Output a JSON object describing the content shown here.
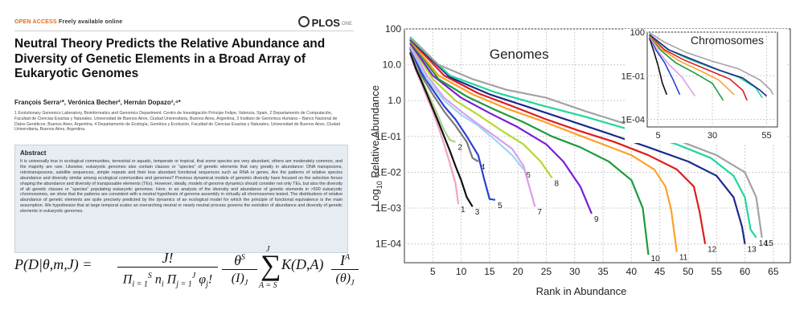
{
  "paper": {
    "journal_badge_open": "OPEN",
    "journal_badge_access": " ACCESS ",
    "journal_badge_free": "Freely available online",
    "journal_name": "PLOS",
    "journal_sub": "ONE",
    "title": "Neutral Theory Predicts the Relative Abundance and Diversity of Genetic Elements in a Broad Array of Eukaryotic Genomes",
    "authors": "François Serra¹*, Verónica Becher², Hernán Dopazo³,⁴*",
    "affiliations": "1 Evolutionary Genomics Laboratory, Bioinformatics and Genomics Department, Centro de Investigación Príncipe Felipe, Valencia, Spain, 2 Departamento de Computación, Facultad de Ciencias Exactas y Naturales, Universidad de Buenos Aires, Ciudad Universitaria, Buenos Aires, Argentina, 3 Instituto de Genómica Humana – Banco Nacional de Datos Genéticos, Buenos Aires, Argentina, 4 Departamento de Ecología, Genética y Evolución, Facultad de Ciencias Exactas y Naturales, Universidad de Buenos Aires, Ciudad Universitaria, Buenos Aires, Argentina",
    "abstract_heading": "Abstract",
    "abstract": "It is universally true in ecological communities, terrestrial or aquatic, temperate or tropical, that some species are very abundant, others are moderately common, and the majority are rare. Likewise, eukaryotic genomes also contain classes or “species” of genetic elements that vary greatly in abundance: DNA transposons, retrotransposons, satellite sequences, simple repeats and their less abundant functional sequences such as RNA or genes. Are the patterns of relative species abundance and diversity similar among ecological communities and genomes? Previous dynamical models of genomic diversity have focused on the selective forces shaping the abundance and diversity of transposable elements (TEs). However, ideally, models of genome dynamics should consider not only TEs, but also the diversity of all genetic classes or “species” populating eukaryotic genomes. Here, in an analysis of the diversity and abundance of genetic elements in >500 eukaryotic chromosomes, we show that the patterns are consistent with a neutral hypothesis of genome assembly in virtually all chromosomes tested. The distributions of relative abundance of genetic elements are quite precisely predicted by the dynamics of an ecological model for which the principle of functional equivalence is the main assumption. We hypothesize that at large temporal scales an overarching neutral or nearly neutral process governs the evolution of abundance and diversity of genetic elements in eukaryotic genomes."
  },
  "formula": {
    "lhs": "P(D|θ,m,J) =",
    "frac1_num": "J!",
    "frac2_num": "θ",
    "frac2_num_sup": "S",
    "frac2_den": "(I)",
    "frac2_den_sub": "J",
    "sum_top": "J",
    "sum_bottom": "A = S",
    "term": "K(D,A)",
    "frac3_num": "I",
    "frac3_num_sup": "A",
    "frac3_den": "(θ)",
    "frac3_den_sub": "J"
  },
  "chart_data": {
    "type": "line",
    "xlabel": "Rank in Abundance",
    "ylabel_prefix": "Log",
    "ylabel_sub": "10",
    "ylabel_rest": " Relative Abundance",
    "log_y": true,
    "ylim": [
      3e-05,
      100
    ],
    "xlim": [
      0,
      68
    ],
    "xticks": [
      5,
      10,
      15,
      20,
      25,
      30,
      35,
      40,
      45,
      50,
      55,
      60,
      65
    ],
    "yticks": [
      {
        "label": "100",
        "value": 100
      },
      {
        "label": "10.0",
        "value": 10
      },
      {
        "label": "1.0",
        "value": 1
      },
      {
        "label": "1E-01",
        "value": 0.1
      },
      {
        "label": "1E-02",
        "value": 0.01
      },
      {
        "label": "1E-03",
        "value": 0.001
      },
      {
        "label": "1E-04",
        "value": 0.0001
      }
    ],
    "grid": true,
    "annotation": "Genomes",
    "series": [
      {
        "name": "1",
        "color": "#f2a2c6",
        "points": [
          [
            1,
            20
          ],
          [
            2,
            7
          ],
          [
            3,
            3
          ],
          [
            4,
            1.2
          ],
          [
            5,
            0.5
          ],
          [
            6,
            0.18
          ],
          [
            7,
            0.06
          ],
          [
            8,
            0.018
          ],
          [
            9,
            0.005
          ],
          [
            9.5,
            0.0013
          ]
        ]
      },
      {
        "name": "2",
        "color": "#a9d38a",
        "points": [
          [
            1,
            25
          ],
          [
            2,
            9
          ],
          [
            3,
            4
          ],
          [
            4,
            1.8
          ],
          [
            5,
            0.8
          ],
          [
            6,
            0.35
          ],
          [
            7,
            0.15
          ],
          [
            8,
            0.08
          ],
          [
            9,
            0.07
          ]
        ]
      },
      {
        "name": "3",
        "color": "#111111",
        "points": [
          [
            1,
            22
          ],
          [
            2,
            8
          ],
          [
            3,
            3.5
          ],
          [
            4,
            1.5
          ],
          [
            5,
            0.6
          ],
          [
            6,
            0.25
          ],
          [
            7,
            0.1
          ],
          [
            8,
            0.04
          ],
          [
            9,
            0.015
          ],
          [
            10,
            0.006
          ],
          [
            11,
            0.002
          ],
          [
            12,
            0.0011
          ]
        ]
      },
      {
        "name": "4",
        "color": "#7a7a7a",
        "points": [
          [
            1,
            28
          ],
          [
            3,
            5
          ],
          [
            5,
            1.5
          ],
          [
            7,
            0.5
          ],
          [
            9,
            0.2
          ],
          [
            11,
            0.07
          ],
          [
            12,
            0.025
          ],
          [
            13,
            0.02
          ]
        ]
      },
      {
        "name": "5",
        "color": "#2a3fd4",
        "points": [
          [
            1,
            30
          ],
          [
            3,
            6
          ],
          [
            5,
            2
          ],
          [
            7,
            0.7
          ],
          [
            9,
            0.3
          ],
          [
            11,
            0.1
          ],
          [
            13,
            0.03
          ],
          [
            14,
            0.007
          ],
          [
            15,
            0.0018
          ],
          [
            16,
            0.0017
          ]
        ]
      },
      {
        "name": "6",
        "color": "#9ed6f5",
        "points": [
          [
            1,
            32
          ],
          [
            4,
            4
          ],
          [
            7,
            1
          ],
          [
            10,
            0.4
          ],
          [
            13,
            0.2
          ],
          [
            16,
            0.08
          ],
          [
            19,
            0.03
          ],
          [
            21,
            0.012
          ]
        ]
      },
      {
        "name": "7",
        "color": "#d7a0ea",
        "points": [
          [
            1,
            35
          ],
          [
            4,
            5
          ],
          [
            7,
            1.2
          ],
          [
            10,
            0.5
          ],
          [
            13,
            0.22
          ],
          [
            16,
            0.1
          ],
          [
            19,
            0.045
          ],
          [
            21,
            0.015
          ],
          [
            22,
            0.004
          ],
          [
            23,
            0.0011
          ]
        ]
      },
      {
        "name": "8",
        "color": "#b5d92e",
        "points": [
          [
            1,
            38
          ],
          [
            5,
            4
          ],
          [
            9,
            1
          ],
          [
            13,
            0.4
          ],
          [
            17,
            0.15
          ],
          [
            21,
            0.06
          ],
          [
            24,
            0.02
          ],
          [
            26,
            0.007
          ]
        ]
      },
      {
        "name": "9",
        "color": "#7a1fd6",
        "points": [
          [
            1,
            40
          ],
          [
            5,
            5
          ],
          [
            10,
            1.2
          ],
          [
            15,
            0.45
          ],
          [
            20,
            0.18
          ],
          [
            25,
            0.06
          ],
          [
            28,
            0.02
          ],
          [
            31,
            0.004
          ],
          [
            33,
            0.0007
          ]
        ]
      },
      {
        "name": "10",
        "color": "#1d9a3c",
        "points": [
          [
            1,
            45
          ],
          [
            6,
            4
          ],
          [
            11,
            1.3
          ],
          [
            16,
            0.55
          ],
          [
            21,
            0.25
          ],
          [
            26,
            0.1
          ],
          [
            31,
            0.05
          ],
          [
            36,
            0.02
          ],
          [
            40,
            0.006
          ],
          [
            42,
            0.001
          ],
          [
            43,
            5e-05
          ]
        ]
      },
      {
        "name": "11",
        "color": "#ffa02b",
        "points": [
          [
            1,
            48
          ],
          [
            6,
            5
          ],
          [
            12,
            1.5
          ],
          [
            18,
            0.6
          ],
          [
            24,
            0.28
          ],
          [
            30,
            0.12
          ],
          [
            35,
            0.06
          ],
          [
            40,
            0.03
          ],
          [
            44,
            0.012
          ],
          [
            46,
            0.004
          ],
          [
            47,
            0.0009
          ],
          [
            48,
            6e-05
          ]
        ]
      },
      {
        "name": "12",
        "color": "#e01c1c",
        "points": [
          [
            1,
            50
          ],
          [
            7,
            5
          ],
          [
            13,
            1.6
          ],
          [
            19,
            0.7
          ],
          [
            25,
            0.3
          ],
          [
            31,
            0.14
          ],
          [
            37,
            0.07
          ],
          [
            43,
            0.03
          ],
          [
            48,
            0.012
          ],
          [
            51,
            0.004
          ],
          [
            52,
            0.0008
          ],
          [
            53,
            0.0001
          ]
        ]
      },
      {
        "name": "13",
        "color": "#1b2a8a",
        "points": [
          [
            1,
            52
          ],
          [
            8,
            4.5
          ],
          [
            15,
            1.5
          ],
          [
            22,
            0.65
          ],
          [
            29,
            0.28
          ],
          [
            36,
            0.12
          ],
          [
            43,
            0.05
          ],
          [
            50,
            0.02
          ],
          [
            55,
            0.008
          ],
          [
            58,
            0.002
          ],
          [
            59.5,
            0.0003
          ],
          [
            60,
            0.0001
          ]
        ]
      },
      {
        "name": "14",
        "color": "#1fd6a0",
        "points": [
          [
            1,
            55
          ],
          [
            8,
            5
          ],
          [
            16,
            1.7
          ],
          [
            24,
            0.75
          ],
          [
            32,
            0.35
          ],
          [
            40,
            0.15
          ],
          [
            48,
            0.06
          ],
          [
            54,
            0.025
          ],
          [
            58,
            0.008
          ],
          [
            60,
            0.002
          ],
          [
            61,
            0.00025
          ],
          [
            62,
            0.00015
          ]
        ]
      },
      {
        "name": "15",
        "color": "#a3a3a3",
        "points": [
          [
            1,
            60
          ],
          [
            6,
            10
          ],
          [
            12,
            4
          ],
          [
            18,
            2
          ],
          [
            25,
            1.2
          ],
          [
            32,
            0.5
          ],
          [
            40,
            0.2
          ],
          [
            48,
            0.08
          ],
          [
            55,
            0.03
          ],
          [
            60,
            0.01
          ],
          [
            62,
            0.002
          ],
          [
            63,
            0.00015
          ]
        ]
      }
    ],
    "inset": {
      "annotation": "Chromosomes",
      "xticks": [
        5,
        30,
        55
      ],
      "yticks": [
        {
          "label": "100",
          "value": 100
        },
        {
          "label": "1E-01",
          "value": 0.1
        },
        {
          "label": "1E-04",
          "value": 0.0001
        }
      ],
      "xlim": [
        0,
        60
      ],
      "ylim": [
        3e-05,
        100
      ],
      "series": [
        {
          "color": "#111111",
          "points": [
            [
              1,
              40
            ],
            [
              3,
              5
            ],
            [
              5,
              0.5
            ],
            [
              7,
              0.03
            ],
            [
              9,
              0.005
            ]
          ]
        },
        {
          "color": "#2a3fd4",
          "points": [
            [
              1,
              50
            ],
            [
              4,
              6
            ],
            [
              8,
              0.8
            ],
            [
              12,
              0.05
            ],
            [
              15,
              0.005
            ]
          ]
        },
        {
          "color": "#d7a0ea",
          "points": [
            [
              1,
              55
            ],
            [
              5,
              5
            ],
            [
              10,
              0.6
            ],
            [
              16,
              0.08
            ],
            [
              22,
              0.004
            ]
          ]
        },
        {
          "color": "#1d9a3c",
          "points": [
            [
              1,
              60
            ],
            [
              6,
              6
            ],
            [
              13,
              0.8
            ],
            [
              22,
              0.15
            ],
            [
              30,
              0.03
            ],
            [
              35,
              0.002
            ]
          ]
        },
        {
          "color": "#ffa02b",
          "points": [
            [
              1,
              60
            ],
            [
              7,
              6
            ],
            [
              15,
              1
            ],
            [
              25,
              0.2
            ],
            [
              33,
              0.05
            ],
            [
              40,
              0.005
            ]
          ]
        },
        {
          "color": "#e01c1c",
          "points": [
            [
              1,
              65
            ],
            [
              8,
              6
            ],
            [
              17,
              1.2
            ],
            [
              28,
              0.25
            ],
            [
              38,
              0.06
            ],
            [
              44,
              0.01
            ],
            [
              46,
              0.002
            ]
          ]
        },
        {
          "color": "#1fd6a0",
          "points": [
            [
              1,
              70
            ],
            [
              9,
              7
            ],
            [
              19,
              1.4
            ],
            [
              31,
              0.3
            ],
            [
              42,
              0.08
            ],
            [
              50,
              0.015
            ],
            [
              53,
              0.003
            ]
          ]
        },
        {
          "color": "#1b2a8a",
          "points": [
            [
              1,
              68
            ],
            [
              10,
              6
            ],
            [
              21,
              1.3
            ],
            [
              33,
              0.25
            ],
            [
              44,
              0.07
            ],
            [
              52,
              0.01
            ],
            [
              55,
              0.004
            ]
          ]
        },
        {
          "color": "#a3a3a3",
          "points": [
            [
              1,
              90
            ],
            [
              8,
              20
            ],
            [
              18,
              4
            ],
            [
              30,
              1
            ],
            [
              42,
              0.3
            ],
            [
              52,
              0.05
            ],
            [
              57,
              0.01
            ],
            [
              58,
              0.005
            ]
          ]
        }
      ]
    }
  }
}
